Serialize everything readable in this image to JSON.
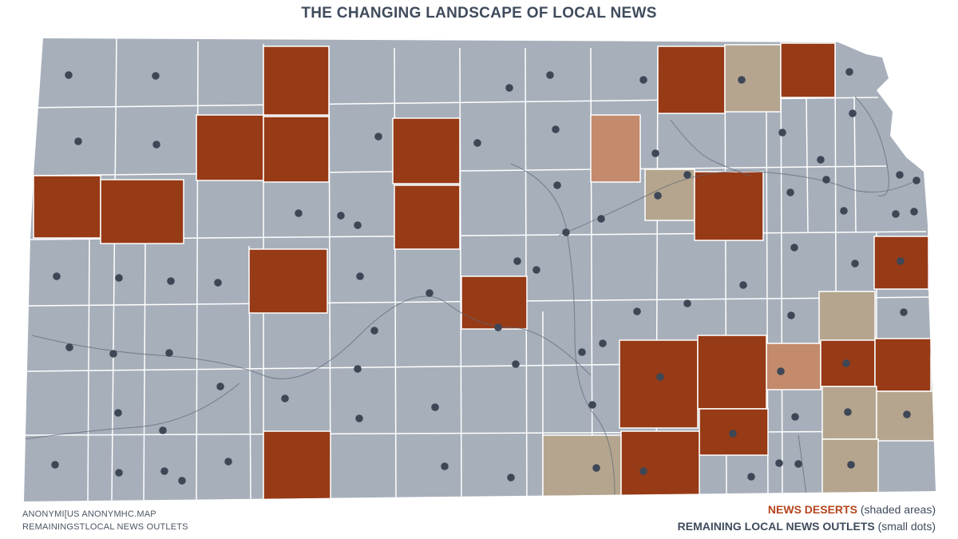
{
  "title": "THE CHANGING LANDSCAPE OF LOCAL NEWS",
  "credits": {
    "line1": "ANONYMI[US ANONYMHC.MAP",
    "line2": "REMAININGSTLOCAL NEWS OUTLETS"
  },
  "legend": {
    "deserts_key": "NEWS DESERTS",
    "deserts_note": "(shaded areas)",
    "outlets_key": "REMAINING LOCAL NEWS OUTLETS",
    "outlets_note": "(small dots)"
  },
  "colors": {
    "county_fill": "#a7afba",
    "county_border": "#ffffff",
    "news_desert": "#973a16",
    "partial_desert_tan": "#b5a58e",
    "partial_desert_salmon": "#c38a6c",
    "outlet_dot": "#3d4756",
    "road": "#5d6675",
    "title_text": "#3f4b5c",
    "legend_accent": "#b5451d"
  },
  "map_legend_categories": [
    "news-desert",
    "partial-desert",
    "served-county"
  ]
}
